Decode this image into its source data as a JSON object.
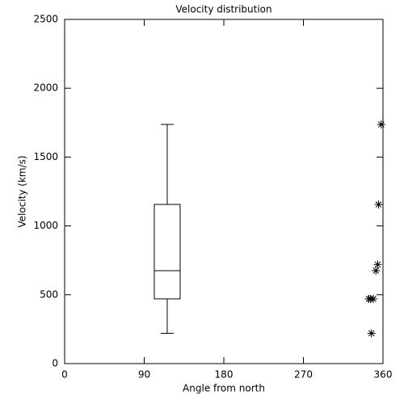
{
  "chart_data": {
    "type": "box",
    "title": "Velocity distribution",
    "x_label": "Angle from north",
    "y_label": "Velocity (km/s)",
    "xlim": [
      0,
      360
    ],
    "xticks": [
      0,
      90,
      180,
      270,
      360
    ],
    "ylim": [
      0,
      2500
    ],
    "yticks": [
      0,
      500,
      1000,
      1500,
      2000,
      2500
    ],
    "color": "#000000",
    "box": {
      "x": 116,
      "whisker_low": 220,
      "q1": 470,
      "median": 675,
      "q3": 1156,
      "whisker_high": 1737
    },
    "series": [
      {
        "type": "scatter",
        "marker": "asterisk",
        "x": [
          347,
          344,
          349,
          346,
          352,
          354,
          355,
          358
        ],
        "values": [
          220,
          470,
          470,
          470,
          675,
          720,
          1156,
          1737
        ]
      }
    ]
  }
}
